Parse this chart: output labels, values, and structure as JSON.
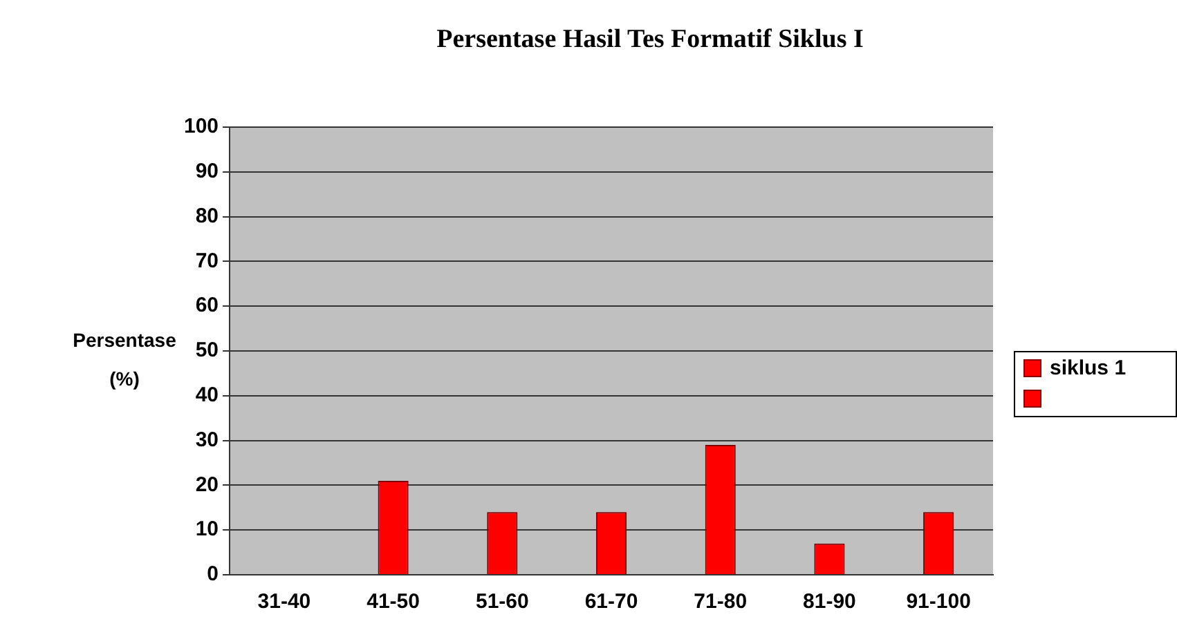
{
  "chart_data": {
    "type": "bar",
    "title": "Persentase Hasil Tes Formatif Siklus I",
    "ylabel": "Persentase (%)",
    "categories": [
      "31-40",
      "41-50",
      "51-60",
      "61-70",
      "71-80",
      "81-90",
      "91-100"
    ],
    "series": [
      {
        "name": "siklus 1",
        "color": "#ff0000",
        "values": [
          0,
          21,
          14,
          14,
          29,
          7,
          14
        ]
      }
    ],
    "ylim": [
      0,
      100
    ],
    "yticks": [
      0,
      10,
      20,
      30,
      40,
      50,
      60,
      70,
      80,
      90,
      100
    ],
    "grid": "y",
    "legend": "right"
  }
}
